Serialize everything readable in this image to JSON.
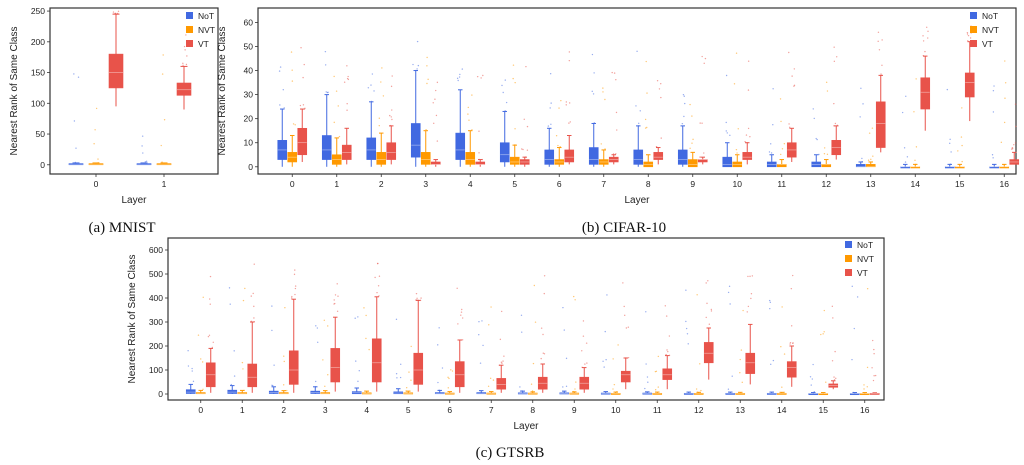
{
  "colors": {
    "NoT": "#4169e1",
    "NVT": "#ff9900",
    "VT": "#e8534a",
    "dots": "#cc3333"
  },
  "chart_data": [
    {
      "id": "mnist",
      "type": "box",
      "caption": "(a) MNIST",
      "xlabel": "Layer",
      "ylabel": "Nearest Rank of Same Class",
      "categories": [
        "0",
        "1"
      ],
      "yticks": [
        0,
        50,
        100,
        150,
        200,
        250
      ],
      "ylim": [
        -15,
        255
      ],
      "legend": [
        "NoT",
        "NVT",
        "VT"
      ],
      "legend_position": "top-right",
      "series": [
        {
          "name": "NoT",
          "boxes": [
            {
              "wlo": 0,
              "q1": 0,
              "med": 1,
              "q3": 2,
              "whi": 3
            },
            {
              "wlo": 0,
              "q1": 0,
              "med": 1,
              "q3": 2,
              "whi": 3
            }
          ]
        },
        {
          "name": "NVT",
          "boxes": [
            {
              "wlo": 0,
              "q1": 0,
              "med": 1,
              "q3": 2,
              "whi": 3
            },
            {
              "wlo": 0,
              "q1": 0,
              "med": 1,
              "q3": 2,
              "whi": 3
            }
          ]
        },
        {
          "name": "VT",
          "boxes": [
            {
              "wlo": 95,
              "q1": 125,
              "med": 150,
              "q3": 180,
              "whi": 245
            },
            {
              "wlo": 90,
              "q1": 113,
              "med": 122,
              "q3": 133,
              "whi": 160
            }
          ]
        }
      ]
    },
    {
      "id": "cifar",
      "type": "box",
      "caption": "(b) CIFAR-10",
      "xlabel": "Layer",
      "ylabel": "Nearest Rank of Same Class",
      "categories": [
        "0",
        "1",
        "2",
        "3",
        "4",
        "5",
        "6",
        "7",
        "8",
        "9",
        "10",
        "11",
        "12",
        "13",
        "14",
        "15",
        "16"
      ],
      "yticks": [
        0,
        10,
        20,
        30,
        40,
        50,
        60
      ],
      "ylim": [
        -3,
        66
      ],
      "legend": [
        "NoT",
        "NVT",
        "VT"
      ],
      "legend_position": "top-right",
      "series": [
        {
          "name": "NoT",
          "boxes": [
            {
              "wlo": 0,
              "q1": 3,
              "med": 7,
              "q3": 11,
              "whi": 24
            },
            {
              "wlo": 0,
              "q1": 3,
              "med": 7,
              "q3": 13,
              "whi": 30
            },
            {
              "wlo": 0,
              "q1": 3,
              "med": 7,
              "q3": 12,
              "whi": 27
            },
            {
              "wlo": 0,
              "q1": 4,
              "med": 9,
              "q3": 18,
              "whi": 40
            },
            {
              "wlo": 0,
              "q1": 3,
              "med": 7,
              "q3": 14,
              "whi": 32
            },
            {
              "wlo": 0,
              "q1": 2,
              "med": 5,
              "q3": 10,
              "whi": 23
            },
            {
              "wlo": 0,
              "q1": 1,
              "med": 3,
              "q3": 7,
              "whi": 16
            },
            {
              "wlo": 0,
              "q1": 1,
              "med": 3,
              "q3": 8,
              "whi": 18
            },
            {
              "wlo": 0,
              "q1": 1,
              "med": 3,
              "q3": 7,
              "whi": 17
            },
            {
              "wlo": 0,
              "q1": 1,
              "med": 3,
              "q3": 7,
              "whi": 17
            },
            {
              "wlo": 0,
              "q1": 0,
              "med": 1,
              "q3": 4,
              "whi": 10
            },
            {
              "wlo": 0,
              "q1": 0,
              "med": 1,
              "q3": 2,
              "whi": 5
            },
            {
              "wlo": 0,
              "q1": 0,
              "med": 1,
              "q3": 2,
              "whi": 5
            },
            {
              "wlo": 0,
              "q1": 0,
              "med": 0,
              "q3": 1,
              "whi": 2
            },
            {
              "wlo": 0,
              "q1": 0,
              "med": 0,
              "q3": 0,
              "whi": 1
            },
            {
              "wlo": 0,
              "q1": 0,
              "med": 0,
              "q3": 0,
              "whi": 1
            },
            {
              "wlo": 0,
              "q1": 0,
              "med": 0,
              "q3": 0,
              "whi": 1
            }
          ]
        },
        {
          "name": "NVT",
          "boxes": [
            {
              "wlo": 0,
              "q1": 2,
              "med": 4,
              "q3": 6,
              "whi": 13
            },
            {
              "wlo": 0,
              "q1": 1,
              "med": 3,
              "q3": 5,
              "whi": 12
            },
            {
              "wlo": 0,
              "q1": 1,
              "med": 3,
              "q3": 6,
              "whi": 14
            },
            {
              "wlo": 0,
              "q1": 1,
              "med": 3,
              "q3": 6,
              "whi": 15
            },
            {
              "wlo": 0,
              "q1": 1,
              "med": 3,
              "q3": 6,
              "whi": 15
            },
            {
              "wlo": 0,
              "q1": 1,
              "med": 2,
              "q3": 4,
              "whi": 9
            },
            {
              "wlo": 0,
              "q1": 1,
              "med": 2,
              "q3": 3,
              "whi": 8
            },
            {
              "wlo": 0,
              "q1": 1,
              "med": 2,
              "q3": 3,
              "whi": 7
            },
            {
              "wlo": 0,
              "q1": 0,
              "med": 1,
              "q3": 2,
              "whi": 5
            },
            {
              "wlo": 0,
              "q1": 0,
              "med": 1,
              "q3": 3,
              "whi": 6
            },
            {
              "wlo": 0,
              "q1": 0,
              "med": 1,
              "q3": 2,
              "whi": 5
            },
            {
              "wlo": 0,
              "q1": 0,
              "med": 1,
              "q3": 1,
              "whi": 3
            },
            {
              "wlo": 0,
              "q1": 0,
              "med": 1,
              "q3": 1,
              "whi": 3
            },
            {
              "wlo": 0,
              "q1": 0,
              "med": 0,
              "q3": 1,
              "whi": 2
            },
            {
              "wlo": 0,
              "q1": 0,
              "med": 0,
              "q3": 0,
              "whi": 1
            },
            {
              "wlo": 0,
              "q1": 0,
              "med": 0,
              "q3": 0,
              "whi": 1
            },
            {
              "wlo": 0,
              "q1": 0,
              "med": 0,
              "q3": 0,
              "whi": 1
            }
          ]
        },
        {
          "name": "VT",
          "boxes": [
            {
              "wlo": 2,
              "q1": 5,
              "med": 10,
              "q3": 16,
              "whi": 24
            },
            {
              "wlo": 1,
              "q1": 3,
              "med": 6,
              "q3": 9,
              "whi": 16
            },
            {
              "wlo": 1,
              "q1": 3,
              "med": 6,
              "q3": 10,
              "whi": 17
            },
            {
              "wlo": 0,
              "q1": 1,
              "med": 1,
              "q3": 2,
              "whi": 3
            },
            {
              "wlo": 0,
              "q1": 1,
              "med": 1,
              "q3": 2,
              "whi": 3
            },
            {
              "wlo": 0,
              "q1": 1,
              "med": 2,
              "q3": 3,
              "whi": 4
            },
            {
              "wlo": 1,
              "q1": 2,
              "med": 4,
              "q3": 7,
              "whi": 13
            },
            {
              "wlo": 1,
              "q1": 2,
              "med": 3,
              "q3": 4,
              "whi": 5
            },
            {
              "wlo": 1,
              "q1": 3,
              "med": 4,
              "q3": 6,
              "whi": 8
            },
            {
              "wlo": 1,
              "q1": 2,
              "med": 3,
              "q3": 3,
              "whi": 4
            },
            {
              "wlo": 1,
              "q1": 3,
              "med": 4,
              "q3": 6,
              "whi": 10
            },
            {
              "wlo": 2,
              "q1": 4,
              "med": 7,
              "q3": 10,
              "whi": 16
            },
            {
              "wlo": 3,
              "q1": 5,
              "med": 8,
              "q3": 11,
              "whi": 17
            },
            {
              "wlo": 6,
              "q1": 8,
              "med": 18,
              "q3": 27,
              "whi": 38
            },
            {
              "wlo": 15,
              "q1": 24,
              "med": 31,
              "q3": 37,
              "whi": 46
            },
            {
              "wlo": 19,
              "q1": 29,
              "med": 35,
              "q3": 39,
              "whi": 52
            },
            {
              "wlo": 1,
              "q1": 1,
              "med": 2,
              "q3": 3,
              "whi": 6
            }
          ]
        }
      ]
    },
    {
      "id": "gtsrb",
      "type": "box",
      "caption": "(c) GTSRB",
      "xlabel": "Layer",
      "ylabel": "Nearest Rank of Same Class",
      "categories": [
        "0",
        "1",
        "2",
        "3",
        "4",
        "5",
        "6",
        "7",
        "8",
        "9",
        "10",
        "11",
        "12",
        "13",
        "14",
        "15",
        "16"
      ],
      "yticks": [
        0,
        100,
        200,
        300,
        400,
        500,
        600
      ],
      "ylim": [
        -25,
        650
      ],
      "legend": [
        "NoT",
        "NVT",
        "VT"
      ],
      "legend_position": "top-right",
      "series": [
        {
          "name": "NoT",
          "boxes": [
            {
              "wlo": 0,
              "q1": 2,
              "med": 8,
              "q3": 18,
              "whi": 40
            },
            {
              "wlo": 0,
              "q1": 2,
              "med": 8,
              "q3": 16,
              "whi": 35
            },
            {
              "wlo": 0,
              "q1": 2,
              "med": 6,
              "q3": 12,
              "whi": 30
            },
            {
              "wlo": 0,
              "q1": 2,
              "med": 6,
              "q3": 12,
              "whi": 30
            },
            {
              "wlo": 0,
              "q1": 1,
              "med": 5,
              "q3": 10,
              "whi": 25
            },
            {
              "wlo": 0,
              "q1": 1,
              "med": 4,
              "q3": 9,
              "whi": 22
            },
            {
              "wlo": 0,
              "q1": 1,
              "med": 3,
              "q3": 6,
              "whi": 15
            },
            {
              "wlo": 0,
              "q1": 1,
              "med": 3,
              "q3": 6,
              "whi": 14
            },
            {
              "wlo": 0,
              "q1": 1,
              "med": 2,
              "q3": 5,
              "whi": 12
            },
            {
              "wlo": 0,
              "q1": 1,
              "med": 2,
              "q3": 5,
              "whi": 12
            },
            {
              "wlo": 0,
              "q1": 1,
              "med": 2,
              "q3": 4,
              "whi": 10
            },
            {
              "wlo": 0,
              "q1": 0,
              "med": 2,
              "q3": 4,
              "whi": 9
            },
            {
              "wlo": 0,
              "q1": 0,
              "med": 1,
              "q3": 3,
              "whi": 8
            },
            {
              "wlo": 0,
              "q1": 0,
              "med": 1,
              "q3": 3,
              "whi": 8
            },
            {
              "wlo": 0,
              "q1": 0,
              "med": 1,
              "q3": 3,
              "whi": 8
            },
            {
              "wlo": 0,
              "q1": 0,
              "med": 1,
              "q3": 2,
              "whi": 6
            },
            {
              "wlo": 0,
              "q1": 0,
              "med": 1,
              "q3": 2,
              "whi": 6
            }
          ]
        },
        {
          "name": "NVT",
          "boxes": [
            {
              "wlo": 0,
              "q1": 1,
              "med": 3,
              "q3": 6,
              "whi": 15
            },
            {
              "wlo": 0,
              "q1": 1,
              "med": 3,
              "q3": 6,
              "whi": 15
            },
            {
              "wlo": 0,
              "q1": 1,
              "med": 3,
              "q3": 6,
              "whi": 14
            },
            {
              "wlo": 0,
              "q1": 1,
              "med": 3,
              "q3": 6,
              "whi": 14
            },
            {
              "wlo": 0,
              "q1": 1,
              "med": 2,
              "q3": 5,
              "whi": 12
            },
            {
              "wlo": 0,
              "q1": 1,
              "med": 2,
              "q3": 5,
              "whi": 12
            },
            {
              "wlo": 0,
              "q1": 1,
              "med": 2,
              "q3": 4,
              "whi": 10
            },
            {
              "wlo": 0,
              "q1": 1,
              "med": 2,
              "q3": 4,
              "whi": 10
            },
            {
              "wlo": 0,
              "q1": 1,
              "med": 2,
              "q3": 4,
              "whi": 9
            },
            {
              "wlo": 0,
              "q1": 1,
              "med": 2,
              "q3": 4,
              "whi": 9
            },
            {
              "wlo": 0,
              "q1": 0,
              "med": 2,
              "q3": 3,
              "whi": 8
            },
            {
              "wlo": 0,
              "q1": 0,
              "med": 1,
              "q3": 3,
              "whi": 8
            },
            {
              "wlo": 0,
              "q1": 0,
              "med": 1,
              "q3": 3,
              "whi": 7
            },
            {
              "wlo": 0,
              "q1": 0,
              "med": 1,
              "q3": 3,
              "whi": 7
            },
            {
              "wlo": 0,
              "q1": 0,
              "med": 1,
              "q3": 3,
              "whi": 7
            },
            {
              "wlo": 0,
              "q1": 0,
              "med": 1,
              "q3": 2,
              "whi": 6
            },
            {
              "wlo": 0,
              "q1": 0,
              "med": 1,
              "q3": 2,
              "whi": 6
            }
          ]
        },
        {
          "name": "VT",
          "boxes": [
            {
              "wlo": 5,
              "q1": 30,
              "med": 80,
              "q3": 130,
              "whi": 190
            },
            {
              "wlo": 5,
              "q1": 30,
              "med": 70,
              "q3": 125,
              "whi": 300
            },
            {
              "wlo": 5,
              "q1": 40,
              "med": 100,
              "q3": 180,
              "whi": 395
            },
            {
              "wlo": 10,
              "q1": 50,
              "med": 110,
              "q3": 190,
              "whi": 320
            },
            {
              "wlo": 10,
              "q1": 50,
              "med": 130,
              "q3": 230,
              "whi": 405
            },
            {
              "wlo": 10,
              "q1": 40,
              "med": 100,
              "q3": 170,
              "whi": 390
            },
            {
              "wlo": 5,
              "q1": 30,
              "med": 80,
              "q3": 135,
              "whi": 225
            },
            {
              "wlo": 5,
              "q1": 20,
              "med": 40,
              "q3": 65,
              "whi": 120
            },
            {
              "wlo": 5,
              "q1": 20,
              "med": 45,
              "q3": 70,
              "whi": 125
            },
            {
              "wlo": 5,
              "q1": 20,
              "med": 45,
              "q3": 70,
              "whi": 110
            },
            {
              "wlo": 20,
              "q1": 50,
              "med": 80,
              "q3": 95,
              "whi": 150
            },
            {
              "wlo": 20,
              "q1": 60,
              "med": 80,
              "q3": 105,
              "whi": 160
            },
            {
              "wlo": 60,
              "q1": 130,
              "med": 170,
              "q3": 215,
              "whi": 275
            },
            {
              "wlo": 40,
              "q1": 85,
              "med": 130,
              "q3": 170,
              "whi": 290
            },
            {
              "wlo": 30,
              "q1": 70,
              "med": 110,
              "q3": 135,
              "whi": 200
            },
            {
              "wlo": 20,
              "q1": 28,
              "med": 35,
              "q3": 42,
              "whi": 55
            },
            {
              "wlo": 0,
              "q1": 1,
              "med": 2,
              "q3": 3,
              "whi": 5
            }
          ]
        }
      ]
    }
  ]
}
